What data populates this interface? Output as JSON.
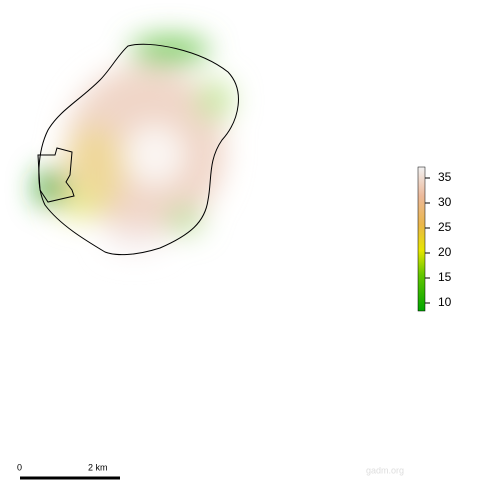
{
  "legend": {
    "range": [
      8.4,
      37.2
    ],
    "ticks": [
      10,
      15,
      20,
      25,
      30,
      35
    ]
  },
  "scalebar": {
    "start": "0",
    "end": "2 km"
  },
  "credit": "gadm.org"
}
